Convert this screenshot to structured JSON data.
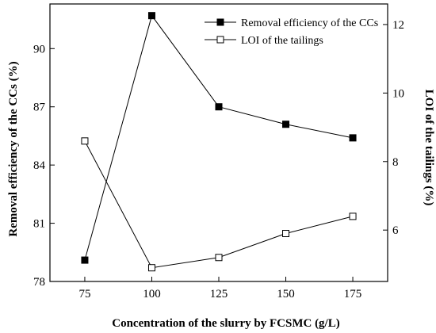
{
  "chart_data": {
    "type": "line",
    "title": "",
    "xlabel": "Concentration of the slurry by FCSMC (g/L)",
    "ylabel": "Removal efficiency of the CCs (%)",
    "y2label": "LOI of the tailings (%)",
    "x": [
      75,
      100,
      125,
      150,
      175
    ],
    "xticks": [
      75,
      100,
      125,
      150,
      175
    ],
    "xlim": [
      62,
      188
    ],
    "ylim": [
      78,
      92.3
    ],
    "yticks": [
      78,
      81,
      84,
      87,
      90
    ],
    "y2lim": [
      4.5,
      12.6
    ],
    "y2ticks": [
      6,
      8,
      10,
      12
    ],
    "grid": false,
    "legend_position": "top-right",
    "series": [
      {
        "name": "Removal efficiency of the CCs",
        "axis": "left",
        "marker": "filled-square",
        "values": [
          79.1,
          91.7,
          87.0,
          86.1,
          85.4
        ]
      },
      {
        "name": "LOI of the tailings",
        "axis": "right",
        "marker": "open-square",
        "values": [
          8.6,
          4.9,
          5.2,
          5.9,
          6.4
        ]
      }
    ]
  }
}
